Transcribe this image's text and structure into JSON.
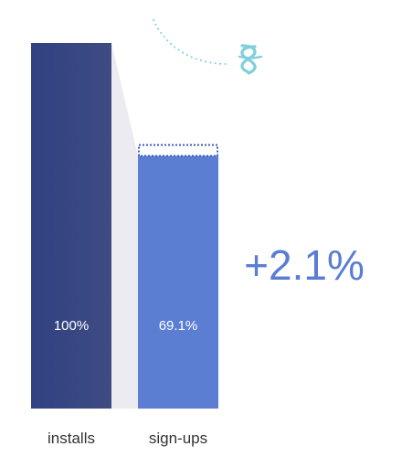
{
  "chart_data": {
    "type": "bar",
    "categories": [
      "installs",
      "sign-ups"
    ],
    "values": [
      100,
      69.1
    ],
    "value_labels": [
      "100%",
      "69.1%"
    ],
    "previous_value": 67.0,
    "change_label": "+2.1%",
    "ylim": [
      0,
      100
    ],
    "grid": false,
    "legend": "none",
    "colors": {
      "installs": "#364784",
      "sign_ups": "#5b7ed3",
      "funnel_connector": "#ebebf1",
      "change_text": "#5b7ed3",
      "dotted_previous": "#3f5fb8",
      "decoration": "#7fd0dc",
      "category_text": "#333333",
      "bar_label": "#ffffff"
    },
    "decoration_icon": "abstract-swirl-icon"
  }
}
